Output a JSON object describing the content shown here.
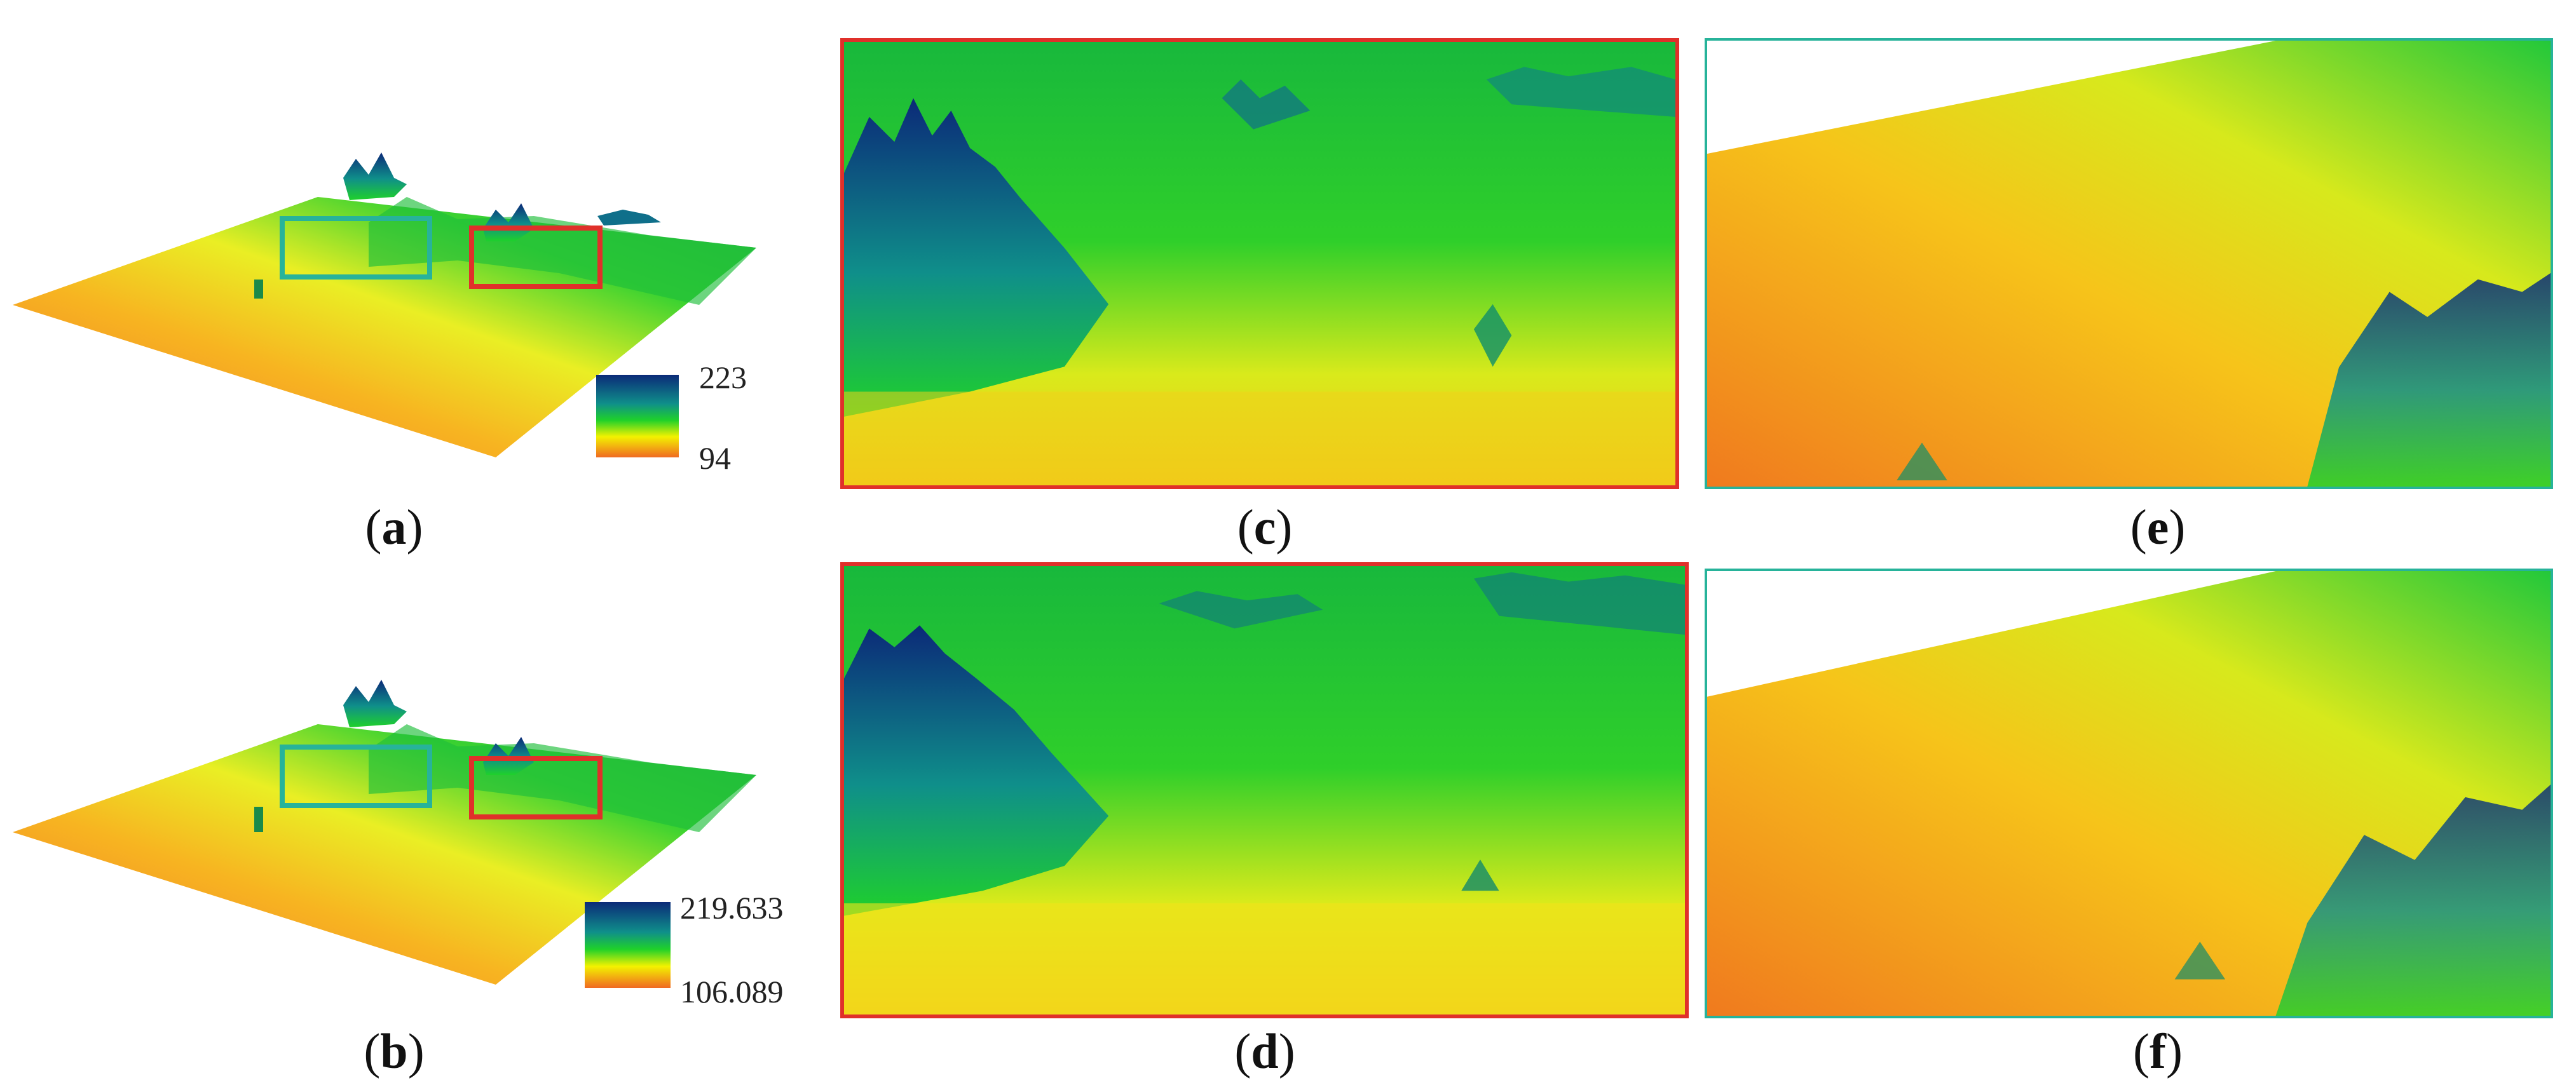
{
  "panels": {
    "a": {
      "caption_letter": "a",
      "colorbar": {
        "max": "223",
        "min": "94"
      }
    },
    "b": {
      "caption_letter": "b",
      "colorbar": {
        "max": "219.633",
        "min": "106.089"
      }
    },
    "c": {
      "caption_letter": "c"
    },
    "d": {
      "caption_letter": "d"
    },
    "e": {
      "caption_letter": "e"
    },
    "f": {
      "caption_letter": "f"
    }
  },
  "colors": {
    "high": "#0b2a78",
    "mid_high": "#0f8f8a",
    "mid": "#1fd12a",
    "mid_low": "#f3f200",
    "low": "#f06a22",
    "frame_red": "#e0302a",
    "frame_teal": "#27b39a"
  }
}
